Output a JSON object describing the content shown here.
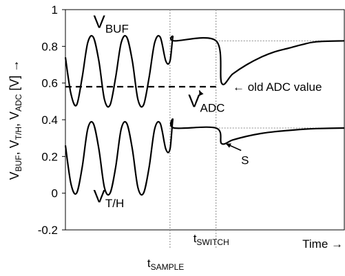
{
  "chart_data": {
    "type": "line",
    "ylabel": {
      "parts": [
        {
          "text": "V",
          "sub": false
        },
        {
          "text": "BUF",
          "sub": true
        },
        {
          "text": ", V",
          "sub": false
        },
        {
          "text": "T/H",
          "sub": true
        },
        {
          "text": ", V",
          "sub": false
        },
        {
          "text": "ADC",
          "sub": true
        },
        {
          "text": " [V] →",
          "sub": false
        }
      ]
    },
    "xlabel": "Time →",
    "ylim": [
      -0.2,
      1.0
    ],
    "xlim": [
      0,
      1
    ],
    "yticks": [
      {
        "value": -0.2,
        "label": "-0.2"
      },
      {
        "value": 0,
        "label": "0"
      },
      {
        "value": 0.2,
        "label": "0.2"
      },
      {
        "value": 0.4,
        "label": "0.4"
      },
      {
        "value": 0.6,
        "label": "0.6"
      },
      {
        "value": 0.8,
        "label": "0.8"
      },
      {
        "value": 1,
        "label": "1"
      }
    ],
    "grid": false,
    "series": [
      {
        "name": "V_BUF",
        "style": "solid",
        "x": [
          0,
          0.02,
          0.04,
          0.06,
          0.08,
          0.1,
          0.12,
          0.14,
          0.16,
          0.18,
          0.2,
          0.22,
          0.24,
          0.26,
          0.28,
          0.3,
          0.32,
          0.34,
          0.36,
          0.375,
          0.385,
          0.39,
          0.54,
          0.56,
          0.6,
          0.65,
          0.7,
          0.75,
          0.8,
          0.85,
          0.9,
          1.0
        ],
        "y": [
          0.74,
          0.54,
          0.48,
          0.63,
          0.82,
          0.85,
          0.72,
          0.51,
          0.48,
          0.63,
          0.82,
          0.85,
          0.72,
          0.51,
          0.48,
          0.63,
          0.82,
          0.85,
          0.72,
          0.72,
          0.85,
          0.83,
          0.83,
          0.6,
          0.65,
          0.7,
          0.74,
          0.77,
          0.79,
          0.81,
          0.825,
          0.83
        ]
      },
      {
        "name": "V_T/H",
        "style": "solid",
        "x": [
          0,
          0.02,
          0.04,
          0.06,
          0.08,
          0.1,
          0.12,
          0.14,
          0.16,
          0.18,
          0.2,
          0.22,
          0.24,
          0.26,
          0.28,
          0.3,
          0.32,
          0.34,
          0.36,
          0.375,
          0.385,
          0.39,
          0.54,
          0.56,
          0.6,
          0.65,
          0.7,
          0.75,
          0.8,
          0.85,
          0.9,
          1.0
        ],
        "y": [
          0.26,
          0.05,
          0.0,
          0.14,
          0.35,
          0.38,
          0.24,
          0.03,
          0.0,
          0.14,
          0.35,
          0.38,
          0.24,
          0.03,
          0.0,
          0.14,
          0.35,
          0.38,
          0.24,
          0.24,
          0.4,
          0.355,
          0.355,
          0.27,
          0.29,
          0.31,
          0.325,
          0.335,
          0.342,
          0.348,
          0.352,
          0.355
        ]
      },
      {
        "name": "V_ADC",
        "style": "dashed",
        "x": [
          0,
          0.54
        ],
        "y": [
          0.58,
          0.58
        ]
      }
    ],
    "vlines": [
      {
        "x": 0.375,
        "label_main": "t",
        "label_sub": "SAMPLE"
      },
      {
        "x": 0.54,
        "label_main": "t",
        "label_sub": "SWITCH"
      }
    ],
    "hlines": [
      {
        "y": 0.83,
        "x_from": 0.54,
        "x_to": 1.0
      },
      {
        "y": 0.355,
        "x_from": 0.54,
        "x_to": 1.0
      }
    ],
    "annotations": [
      {
        "id": "vbuf",
        "main": "V",
        "sub": "BUF",
        "x": 0.1,
        "y": 0.9
      },
      {
        "id": "vth",
        "main": "V",
        "sub": "T/H",
        "x": 0.1,
        "y": -0.05
      },
      {
        "id": "vadc",
        "main": "V",
        "sub": "ADC",
        "x": 0.44,
        "y": 0.47,
        "arrow_to": [
          0.48,
          0.56
        ]
      },
      {
        "id": "old",
        "text": "← old ADC value",
        "x": 0.6,
        "y": 0.58
      },
      {
        "id": "s",
        "text": "S",
        "x": 0.63,
        "y": 0.18,
        "arrow_to": [
          0.575,
          0.27
        ]
      }
    ]
  }
}
